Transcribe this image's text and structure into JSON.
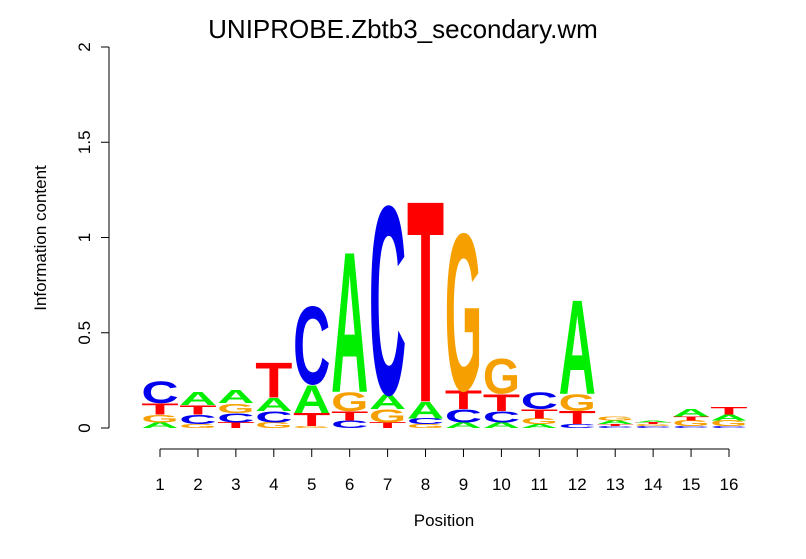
{
  "chart_data": {
    "type": "sequence-logo",
    "title": "UNIPROBE.Zbtb3_secondary.wm",
    "xlabel": "Position",
    "ylabel": "Information content",
    "ylim": [
      0,
      2
    ],
    "yticks": [
      "0",
      "0.5",
      "1",
      "1.5",
      "2"
    ],
    "ytick_values": [
      0,
      0.5,
      1,
      1.5,
      2
    ],
    "positions": [
      "1",
      "2",
      "3",
      "4",
      "5",
      "6",
      "7",
      "8",
      "9",
      "10",
      "11",
      "12",
      "13",
      "14",
      "15",
      "16"
    ],
    "colors": {
      "A": "#00ee00",
      "C": "#0000ee",
      "G": "#f5a000",
      "T": "#ff0000"
    },
    "stacks": [
      [
        {
          "base": "A",
          "height": 0.03
        },
        {
          "base": "G",
          "height": 0.04
        },
        {
          "base": "T",
          "height": 0.06
        },
        {
          "base": "C",
          "height": 0.12
        }
      ],
      [
        {
          "base": "G",
          "height": 0.02
        },
        {
          "base": "C",
          "height": 0.05
        },
        {
          "base": "T",
          "height": 0.05
        },
        {
          "base": "A",
          "height": 0.07
        }
      ],
      [
        {
          "base": "T",
          "height": 0.03
        },
        {
          "base": "C",
          "height": 0.05
        },
        {
          "base": "G",
          "height": 0.05
        },
        {
          "base": "A",
          "height": 0.07
        }
      ],
      [
        {
          "base": "G",
          "height": 0.03
        },
        {
          "base": "C",
          "height": 0.06
        },
        {
          "base": "A",
          "height": 0.07
        },
        {
          "base": "T",
          "height": 0.19
        }
      ],
      [
        {
          "base": "G",
          "height": 0.01
        },
        {
          "base": "T",
          "height": 0.07
        },
        {
          "base": "A",
          "height": 0.15
        },
        {
          "base": "C",
          "height": 0.42
        }
      ],
      [
        {
          "base": "C",
          "height": 0.04
        },
        {
          "base": "T",
          "height": 0.05
        },
        {
          "base": "G",
          "height": 0.1
        },
        {
          "base": "A",
          "height": 0.76
        }
      ],
      [
        {
          "base": "T",
          "height": 0.03
        },
        {
          "base": "G",
          "height": 0.07
        },
        {
          "base": "A",
          "height": 0.08
        },
        {
          "base": "C",
          "height": 1.02
        }
      ],
      [
        {
          "base": "G",
          "height": 0.02
        },
        {
          "base": "C",
          "height": 0.03
        },
        {
          "base": "A",
          "height": 0.09
        },
        {
          "base": "T",
          "height": 1.09
        }
      ],
      [
        {
          "base": "A",
          "height": 0.03
        },
        {
          "base": "C",
          "height": 0.07
        },
        {
          "base": "T",
          "height": 0.1
        },
        {
          "base": "G",
          "height": 0.85
        }
      ],
      [
        {
          "base": "A",
          "height": 0.03
        },
        {
          "base": "C",
          "height": 0.06
        },
        {
          "base": "T",
          "height": 0.09
        },
        {
          "base": "G",
          "height": 0.19
        }
      ],
      [
        {
          "base": "A",
          "height": 0.02
        },
        {
          "base": "G",
          "height": 0.03
        },
        {
          "base": "T",
          "height": 0.05
        },
        {
          "base": "C",
          "height": 0.09
        }
      ],
      [
        {
          "base": "C",
          "height": 0.02
        },
        {
          "base": "T",
          "height": 0.07
        },
        {
          "base": "G",
          "height": 0.09
        },
        {
          "base": "A",
          "height": 0.51
        }
      ],
      [
        {
          "base": "C",
          "height": 0.01
        },
        {
          "base": "T",
          "height": 0.01
        },
        {
          "base": "A",
          "height": 0.02
        },
        {
          "base": "G",
          "height": 0.02
        }
      ],
      [
        {
          "base": "C",
          "height": 0.01
        },
        {
          "base": "G",
          "height": 0.01
        },
        {
          "base": "T",
          "height": 0.01
        },
        {
          "base": "A",
          "height": 0.01
        }
      ],
      [
        {
          "base": "C",
          "height": 0.01
        },
        {
          "base": "G",
          "height": 0.03
        },
        {
          "base": "T",
          "height": 0.02
        },
        {
          "base": "A",
          "height": 0.04
        }
      ],
      [
        {
          "base": "C",
          "height": 0.01
        },
        {
          "base": "G",
          "height": 0.03
        },
        {
          "base": "A",
          "height": 0.03
        },
        {
          "base": "T",
          "height": 0.04
        }
      ]
    ]
  }
}
